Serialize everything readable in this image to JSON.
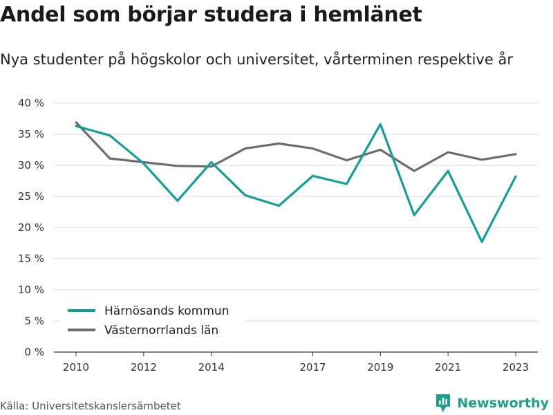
{
  "header": {
    "title": "Andel som börjar studera i hemlänet",
    "subtitle": "Nya studenter på högskolor och universitet, vårterminen respektive år"
  },
  "footer": {
    "source": "Källa: Universitetskanslersämbetet",
    "brand": "Newsworthy",
    "brand_color": "#1e9e8e"
  },
  "chart_data": {
    "type": "line",
    "title": "Andel som börjar studera i hemlänet",
    "subtitle": "Nya studenter på högskolor och universitet, vårterminen respektive år",
    "xlabel": "",
    "ylabel": "",
    "x": [
      2010,
      2011,
      2012,
      2013,
      2014,
      2015,
      2016,
      2017,
      2018,
      2019,
      2020,
      2021,
      2022,
      2023
    ],
    "x_ticks": [
      2010,
      2012,
      2014,
      2017,
      2019,
      2021,
      2023
    ],
    "ylim": [
      0,
      40
    ],
    "y_ticks": [
      0,
      5,
      10,
      15,
      20,
      25,
      30,
      35,
      40
    ],
    "y_tick_labels": [
      "0 %",
      "5 %",
      "10 %",
      "15 %",
      "20 %",
      "25 %",
      "30 %",
      "35 %",
      "40 %"
    ],
    "grid": true,
    "legend_position": "bottom-left",
    "series": [
      {
        "name": "Härnösands kommun",
        "color": "#10a095",
        "values": [
          36.3,
          34.8,
          30.3,
          24.3,
          30.5,
          25.2,
          23.5,
          28.3,
          27.0,
          36.6,
          22.0,
          29.1,
          17.7,
          28.2
        ]
      },
      {
        "name": "Västernorrlands län",
        "color": "#6e6b72",
        "values": [
          36.9,
          31.1,
          30.5,
          29.9,
          29.8,
          32.7,
          33.5,
          32.7,
          30.8,
          32.5,
          29.1,
          32.1,
          30.9,
          31.8
        ]
      }
    ]
  }
}
